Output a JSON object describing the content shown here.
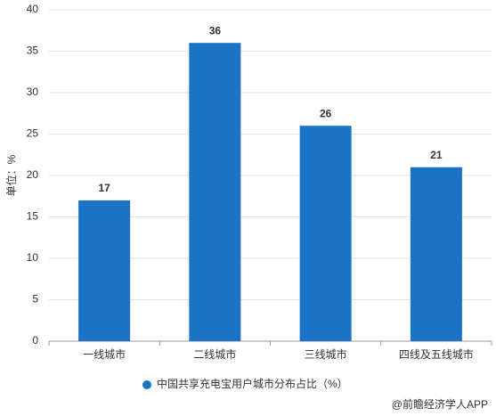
{
  "chart_data": {
    "type": "bar",
    "y_label": "单位：%",
    "categories": [
      "一线城市",
      "二线城市",
      "三线城市",
      "四线及五线城市"
    ],
    "series": [
      {
        "name": "中国共享充电宝用户城市分布占比（%）",
        "color": "#1a73c7",
        "values": [
          17,
          36,
          26,
          21
        ]
      }
    ],
    "ylim": [
      0,
      40
    ],
    "yticks": [
      0,
      5,
      10,
      15,
      20,
      25,
      30,
      35,
      40
    ],
    "grid": true,
    "source": "@前瞻经济学人APP"
  }
}
